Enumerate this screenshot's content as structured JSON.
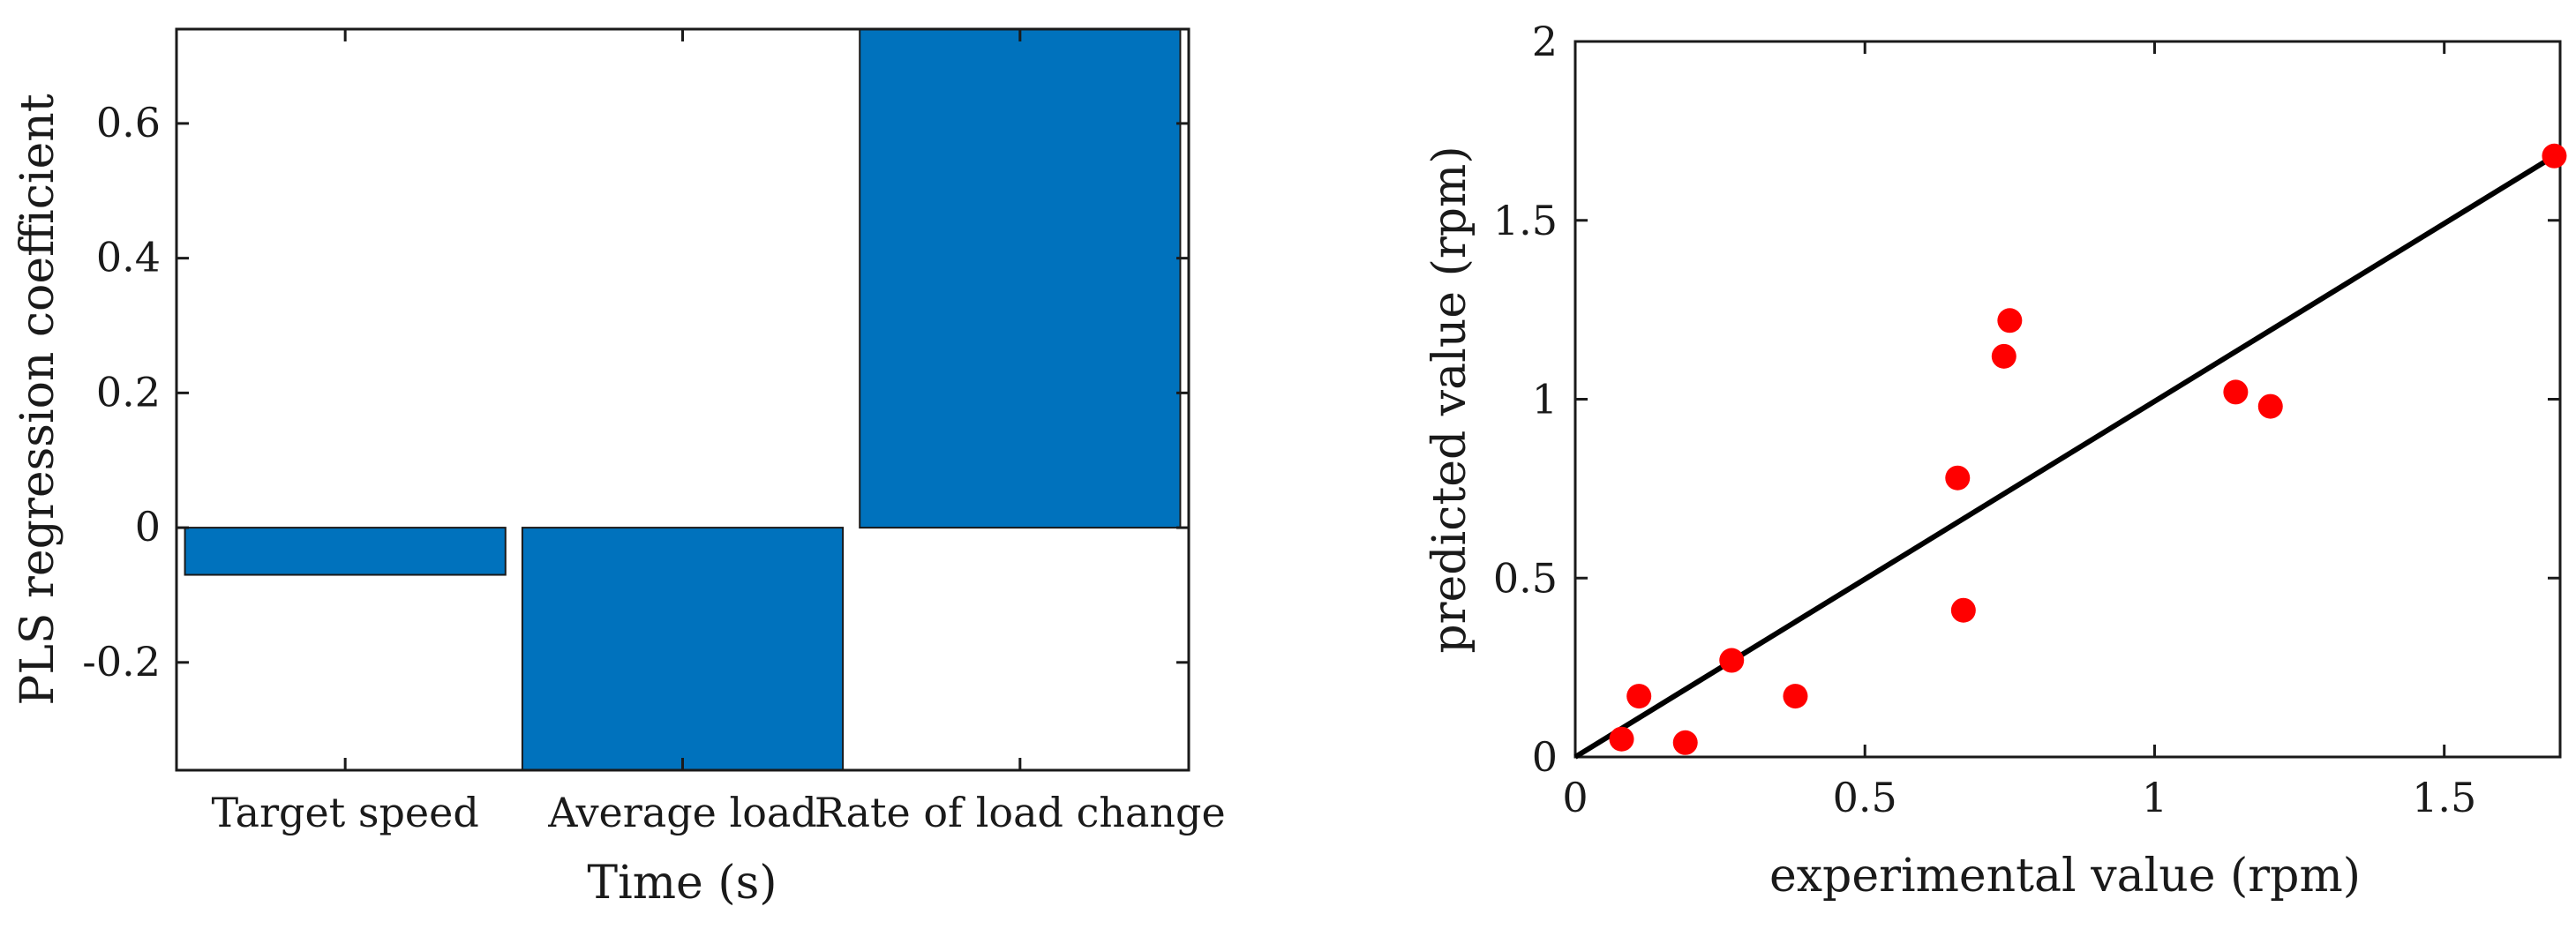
{
  "chart_data": [
    {
      "type": "bar",
      "title": "",
      "xlabel": "Time (s)",
      "ylabel": "PLS regression coefficient",
      "categories": [
        "Target speed",
        "Average load",
        "Rate of load change"
      ],
      "values": [
        -0.07,
        -0.36,
        0.74
      ],
      "ylim": [
        -0.36,
        0.74
      ],
      "yticks": [
        -0.2,
        0,
        0.2,
        0.4,
        0.6
      ],
      "ytick_labels": [
        "-0.2",
        "0",
        "0.2",
        "0.4",
        "0.6"
      ],
      "bar_color": "#0072bd",
      "grid": false,
      "legend": "none"
    },
    {
      "type": "scatter",
      "title": "",
      "xlabel": "experimental value (rpm)",
      "ylabel": "predicted value (rpm)",
      "xlim": [
        0,
        1.7
      ],
      "ylim": [
        0,
        2
      ],
      "xticks": [
        0,
        0.5,
        1,
        1.5
      ],
      "xtick_labels": [
        "0",
        "0.5",
        "1",
        "1.5"
      ],
      "yticks": [
        0,
        0.5,
        1,
        1.5,
        2
      ],
      "ytick_labels": [
        "0",
        "0.5",
        "1",
        "1.5",
        "2"
      ],
      "points": [
        {
          "x": 0.08,
          "y": 0.05
        },
        {
          "x": 0.11,
          "y": 0.17
        },
        {
          "x": 0.19,
          "y": 0.04
        },
        {
          "x": 0.27,
          "y": 0.27
        },
        {
          "x": 0.38,
          "y": 0.17
        },
        {
          "x": 0.66,
          "y": 0.78
        },
        {
          "x": 0.67,
          "y": 0.41
        },
        {
          "x": 0.74,
          "y": 1.12
        },
        {
          "x": 0.75,
          "y": 1.22
        },
        {
          "x": 1.14,
          "y": 1.02
        },
        {
          "x": 1.2,
          "y": 0.98
        },
        {
          "x": 1.69,
          "y": 1.68
        }
      ],
      "fit_line": {
        "x": [
          0,
          1.69
        ],
        "y": [
          0,
          1.68
        ]
      },
      "point_color": "#ff0000",
      "line_color": "#000000",
      "grid": false,
      "legend": "none"
    }
  ]
}
